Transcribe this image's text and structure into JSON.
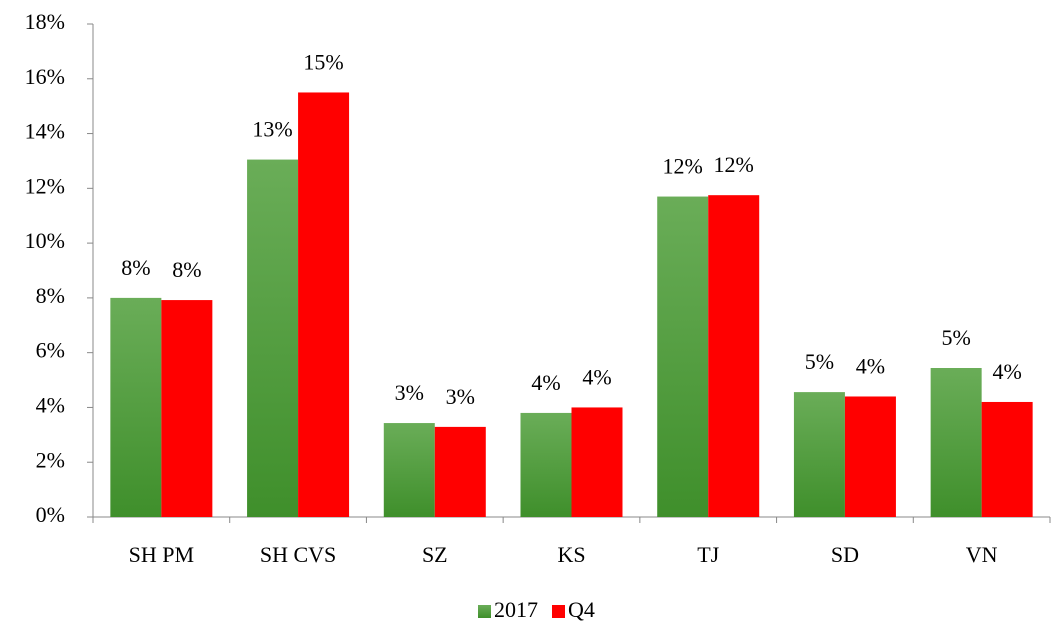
{
  "chart_data": {
    "type": "bar",
    "categories": [
      "SH PM",
      "SH CVS",
      "SZ",
      "KS",
      "TJ",
      "SD",
      "VN"
    ],
    "series": [
      {
        "name": "2017",
        "color": "#4f9a3c",
        "values": [
          8.0,
          13.05,
          3.43,
          3.8,
          11.7,
          4.56,
          5.44
        ],
        "value_labels": [
          "8%",
          "13%",
          "3%",
          "4%",
          "12%",
          "5%",
          "5%"
        ]
      },
      {
        "name": "Q4",
        "color": "#ff0000",
        "values": [
          7.92,
          15.5,
          3.29,
          4.0,
          11.75,
          4.4,
          4.2
        ],
        "value_labels": [
          "8%",
          "15%",
          "3%",
          "4%",
          "12%",
          "4%",
          "4%"
        ]
      }
    ],
    "ylim": [
      0,
      18
    ],
    "yticks": [
      {
        "value": 0,
        "label": "0%"
      },
      {
        "value": 2,
        "label": "2%"
      },
      {
        "value": 4,
        "label": "4%"
      },
      {
        "value": 6,
        "label": "6%"
      },
      {
        "value": 8,
        "label": "8%"
      },
      {
        "value": 10,
        "label": "10%"
      },
      {
        "value": 12,
        "label": "12%"
      },
      {
        "value": 14,
        "label": "14%"
      },
      {
        "value": 16,
        "label": "16%"
      },
      {
        "value": 18,
        "label": "18%"
      }
    ],
    "grid": false,
    "legend": "bottom"
  }
}
